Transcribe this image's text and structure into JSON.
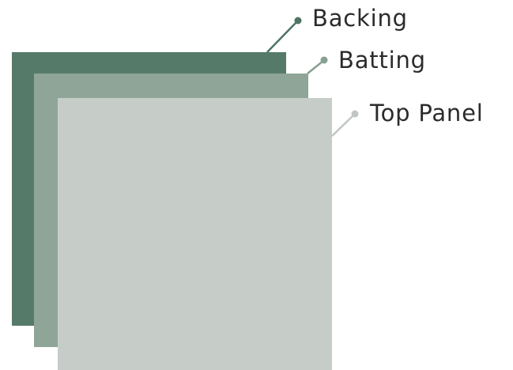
{
  "layers": [
    {
      "id": "backing",
      "label": "Backing",
      "color": "#567a69",
      "leader_color": "#4e7463"
    },
    {
      "id": "batting",
      "label": "Batting",
      "color": "#8ea597",
      "leader_color": "#86a092"
    },
    {
      "id": "top",
      "label": "Top Panel",
      "color": "#c6cdc9",
      "leader_color": "#c0c7c3"
    }
  ]
}
